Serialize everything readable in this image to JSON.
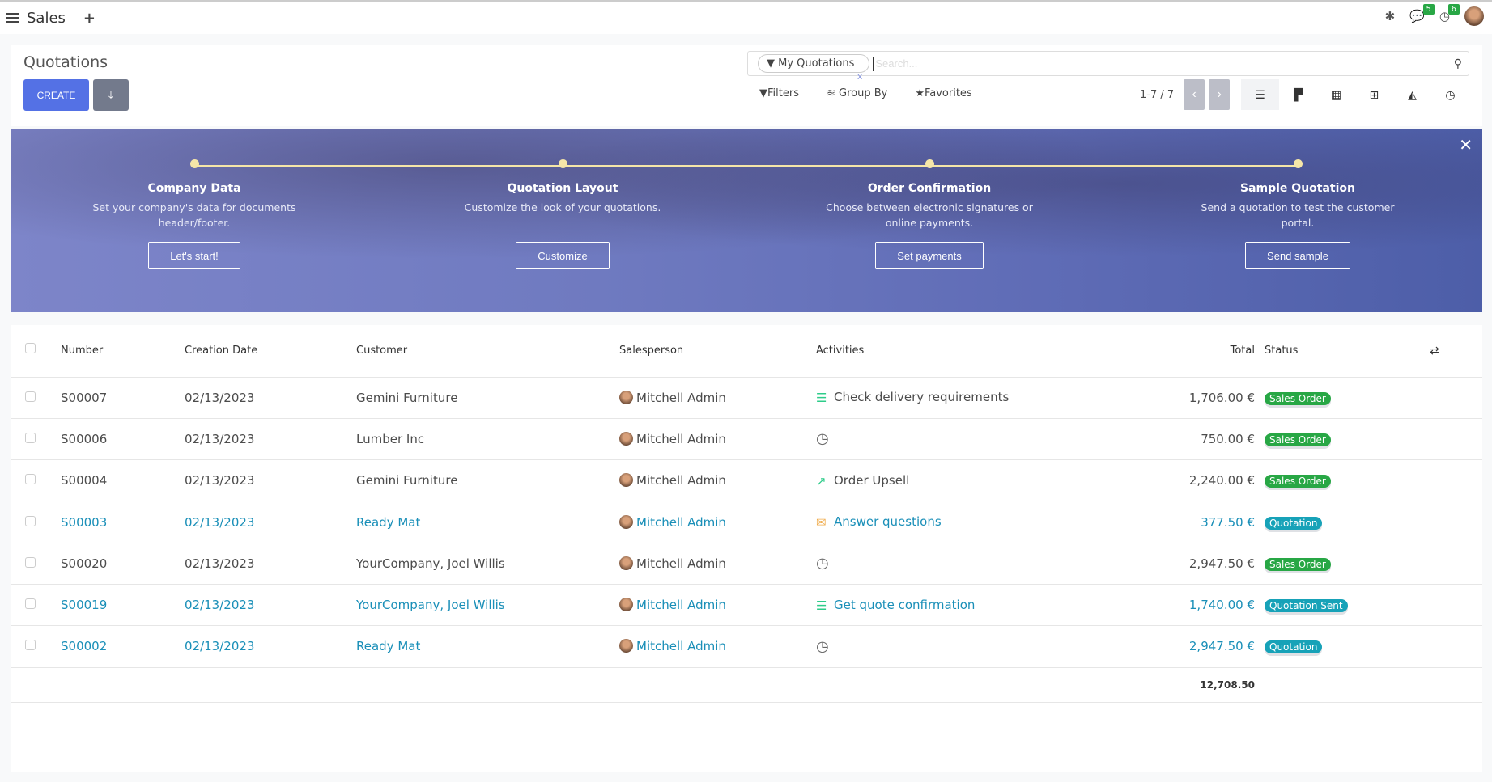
{
  "navbar": {
    "app": "Sales",
    "messages_count": "5",
    "activities_count": "6",
    "icons": [
      "menu-icon",
      "plus-icon",
      "bug-icon",
      "chat-icon",
      "clock-icon",
      "avatar"
    ]
  },
  "control": {
    "title": "Quotations",
    "create": "CREATE",
    "facet": "My Quotations",
    "facet_remove": "x",
    "search_placeholder": "Search...",
    "filters": "Filters",
    "group_by": "Group By",
    "favorites": "Favorites",
    "pager": "1-7 / 7"
  },
  "banner": {
    "steps": [
      {
        "title": "Company Data",
        "desc": "Set your company's data for documents header/footer.",
        "button": "Let's start!"
      },
      {
        "title": "Quotation Layout",
        "desc": "Customize the look of your quotations.",
        "button": "Customize"
      },
      {
        "title": "Order Confirmation",
        "desc": "Choose between electronic signatures or online payments.",
        "button": "Set payments"
      },
      {
        "title": "Sample Quotation",
        "desc": "Send a quotation to test the customer portal.",
        "button": "Send sample"
      }
    ]
  },
  "table": {
    "columns": [
      "Number",
      "Creation Date",
      "Customer",
      "Salesperson",
      "Activities",
      "Total",
      "Status"
    ],
    "rows": [
      {
        "number": "S00007",
        "date": "02/13/2023",
        "customer": "Gemini Furniture",
        "salesperson": "Mitchell Admin",
        "activity_icon": "tasks-icon",
        "activity": "Check delivery requirements",
        "total": "1,706.00 €",
        "status": "Sales Order",
        "link": false
      },
      {
        "number": "S00006",
        "date": "02/13/2023",
        "customer": "Lumber Inc",
        "salesperson": "Mitchell Admin",
        "activity_icon": "clock-icon",
        "activity": "",
        "total": "750.00 €",
        "status": "Sales Order",
        "link": false
      },
      {
        "number": "S00004",
        "date": "02/13/2023",
        "customer": "Gemini Furniture",
        "salesperson": "Mitchell Admin",
        "activity_icon": "upsell-chart-icon",
        "activity": "Order Upsell",
        "total": "2,240.00 €",
        "status": "Sales Order",
        "link": false
      },
      {
        "number": "S00003",
        "date": "02/13/2023",
        "customer": "Ready Mat",
        "salesperson": "Mitchell Admin",
        "activity_icon": "envelope-icon",
        "activity": "Answer questions",
        "total": "377.50 €",
        "status": "Quotation",
        "link": true
      },
      {
        "number": "S00020",
        "date": "02/13/2023",
        "customer": "YourCompany, Joel Willis",
        "salesperson": "Mitchell Admin",
        "activity_icon": "clock-icon",
        "activity": "",
        "total": "2,947.50 €",
        "status": "Sales Order",
        "link": false
      },
      {
        "number": "S00019",
        "date": "02/13/2023",
        "customer": "YourCompany, Joel Willis",
        "salesperson": "Mitchell Admin",
        "activity_icon": "tasks-icon",
        "activity": "Get quote confirmation",
        "total": "1,740.00 €",
        "status": "Quotation Sent",
        "link": true
      },
      {
        "number": "S00002",
        "date": "02/13/2023",
        "customer": "Ready Mat",
        "salesperson": "Mitchell Admin",
        "activity_icon": "clock-icon",
        "activity": "",
        "total": "2,947.50 €",
        "status": "Quotation",
        "link": true
      }
    ],
    "sum_total": "12,708.50"
  },
  "colors": {
    "accent": "#5471e5",
    "sales_order": "#28a745",
    "quotation": "#17a2b8",
    "link": "#1a8fb8"
  }
}
